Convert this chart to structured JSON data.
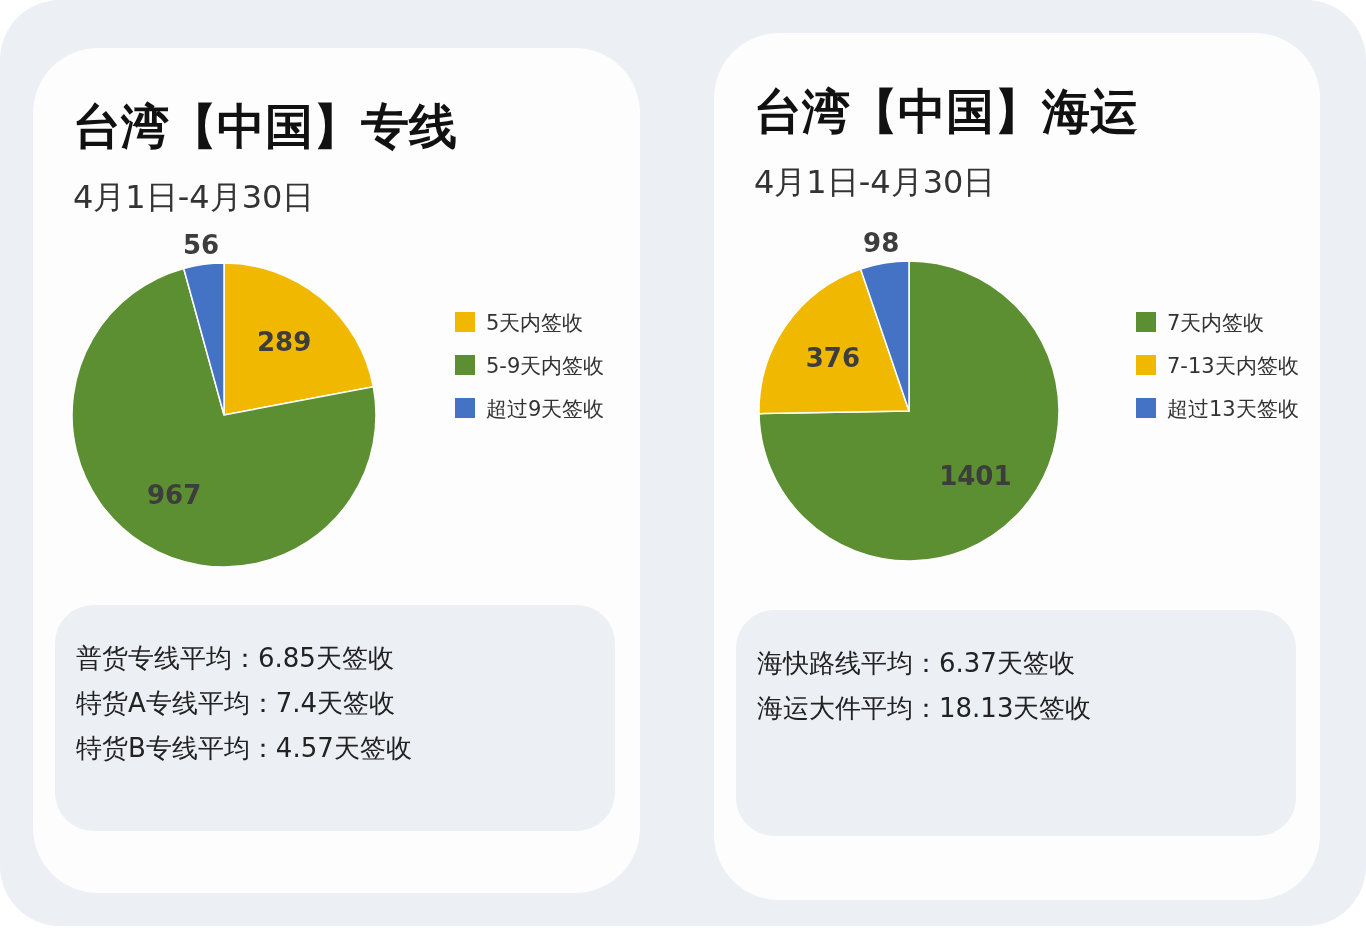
{
  "chart_data": [
    {
      "type": "pie",
      "title": "台湾【中国】专线",
      "subtitle": "4月1日-4月30日",
      "categories": [
        "5天内签收",
        "5-9天内签收",
        "超过9天签收"
      ],
      "values": [
        289,
        967,
        56
      ],
      "colors": [
        "#f0b900",
        "#5b8f31",
        "#4472c4"
      ],
      "data_labels": true,
      "legend": "right",
      "annotations": [
        "普货专线平均：6.85天签收",
        "特货A专线平均：7.4天签收",
        "特货B专线平均：4.57天签收"
      ]
    },
    {
      "type": "pie",
      "title": "台湾【中国】海运",
      "subtitle": "4月1日-4月30日",
      "categories": [
        "7天内签收",
        "7-13天内签收",
        "超过13天签收"
      ],
      "values": [
        1401,
        376,
        98
      ],
      "colors": [
        "#5b8f31",
        "#f0b900",
        "#4472c4"
      ],
      "data_labels": true,
      "legend": "right",
      "annotations": [
        "海快路线平均：6.37天签收",
        "海运大件平均：18.13天签收"
      ]
    }
  ]
}
